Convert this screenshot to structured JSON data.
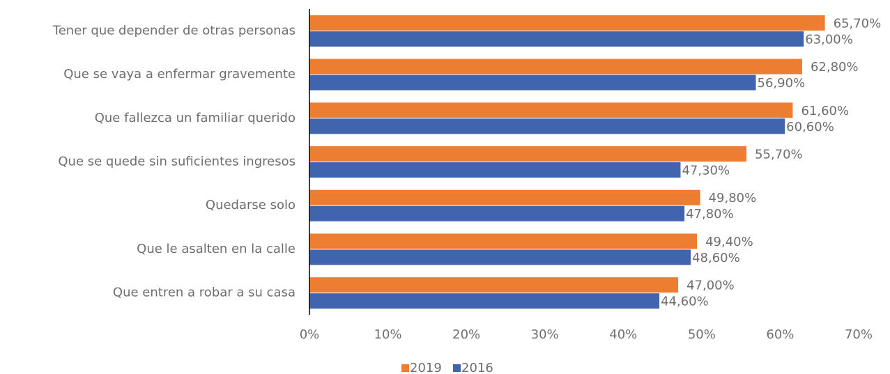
{
  "chart_data": {
    "type": "hbar",
    "categories": [
      "Tener que depender de otras personas",
      "Que se vaya a enfermar gravemente",
      "Que fallezca un familiar querido",
      "Que se quede sin suficientes ingresos",
      "Quedarse solo",
      "Que le asalten en la calle",
      "Que entren a robar a su casa"
    ],
    "series": [
      {
        "name": "2019",
        "color": "#ed7d31",
        "values": [
          65.7,
          62.8,
          61.6,
          55.7,
          49.8,
          49.4,
          47.0
        ],
        "value_labels": [
          "65,70%",
          "62,80%",
          "61,60%",
          "55,70%",
          "49,80%",
          "49,40%",
          "47,00%"
        ]
      },
      {
        "name": "2016",
        "color": "#4064ad",
        "values": [
          63.0,
          56.9,
          60.6,
          47.3,
          47.8,
          48.6,
          44.6
        ],
        "value_labels": [
          "63,00%",
          "56,90%",
          "60,60%",
          "47,30%",
          "47,80%",
          "48,60%",
          "44,60%"
        ]
      }
    ],
    "xlim": [
      0,
      70
    ],
    "xticks": [
      {
        "value": 0,
        "label": "0%"
      },
      {
        "value": 10,
        "label": "10%"
      },
      {
        "value": 20,
        "label": "20%"
      },
      {
        "value": 30,
        "label": "30%"
      },
      {
        "value": 40,
        "label": "40%"
      },
      {
        "value": 50,
        "label": "50%"
      },
      {
        "value": 60,
        "label": "60%"
      },
      {
        "value": 70,
        "label": "70%"
      }
    ],
    "legend": "bottom"
  }
}
